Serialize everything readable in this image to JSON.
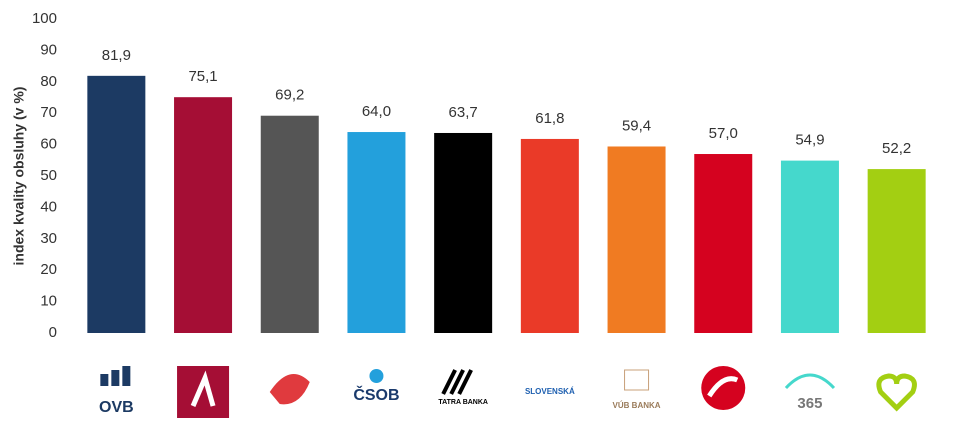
{
  "chart_data": {
    "type": "bar",
    "y_label": "index kvality obsluhy (v %)",
    "categories": [
      "OVB",
      null,
      null,
      "ČSOB",
      "TATRA BANKA",
      "SLOVENSKÁ",
      "VÚB BANKA",
      null,
      "365",
      null
    ],
    "values": [
      81.9,
      75.1,
      69.2,
      64.0,
      63.7,
      61.8,
      59.4,
      57.0,
      54.9,
      52.2
    ],
    "value_labels": [
      "81,9",
      "75,1",
      "69,2",
      "64,0",
      "63,7",
      "61,8",
      "59,4",
      "57,0",
      "54,9",
      "52,2"
    ],
    "colors": [
      "#1c3a63",
      "#a50e35",
      "#555555",
      "#23a0dc",
      "#000000",
      "#ea3a28",
      "#f07b22",
      "#d5021f",
      "#45d8cc",
      "#a3cf12"
    ],
    "ylim": [
      0,
      100
    ],
    "yticks": [
      0,
      10,
      20,
      30,
      40,
      50,
      60,
      70,
      80,
      90,
      100
    ],
    "grid": false
  }
}
